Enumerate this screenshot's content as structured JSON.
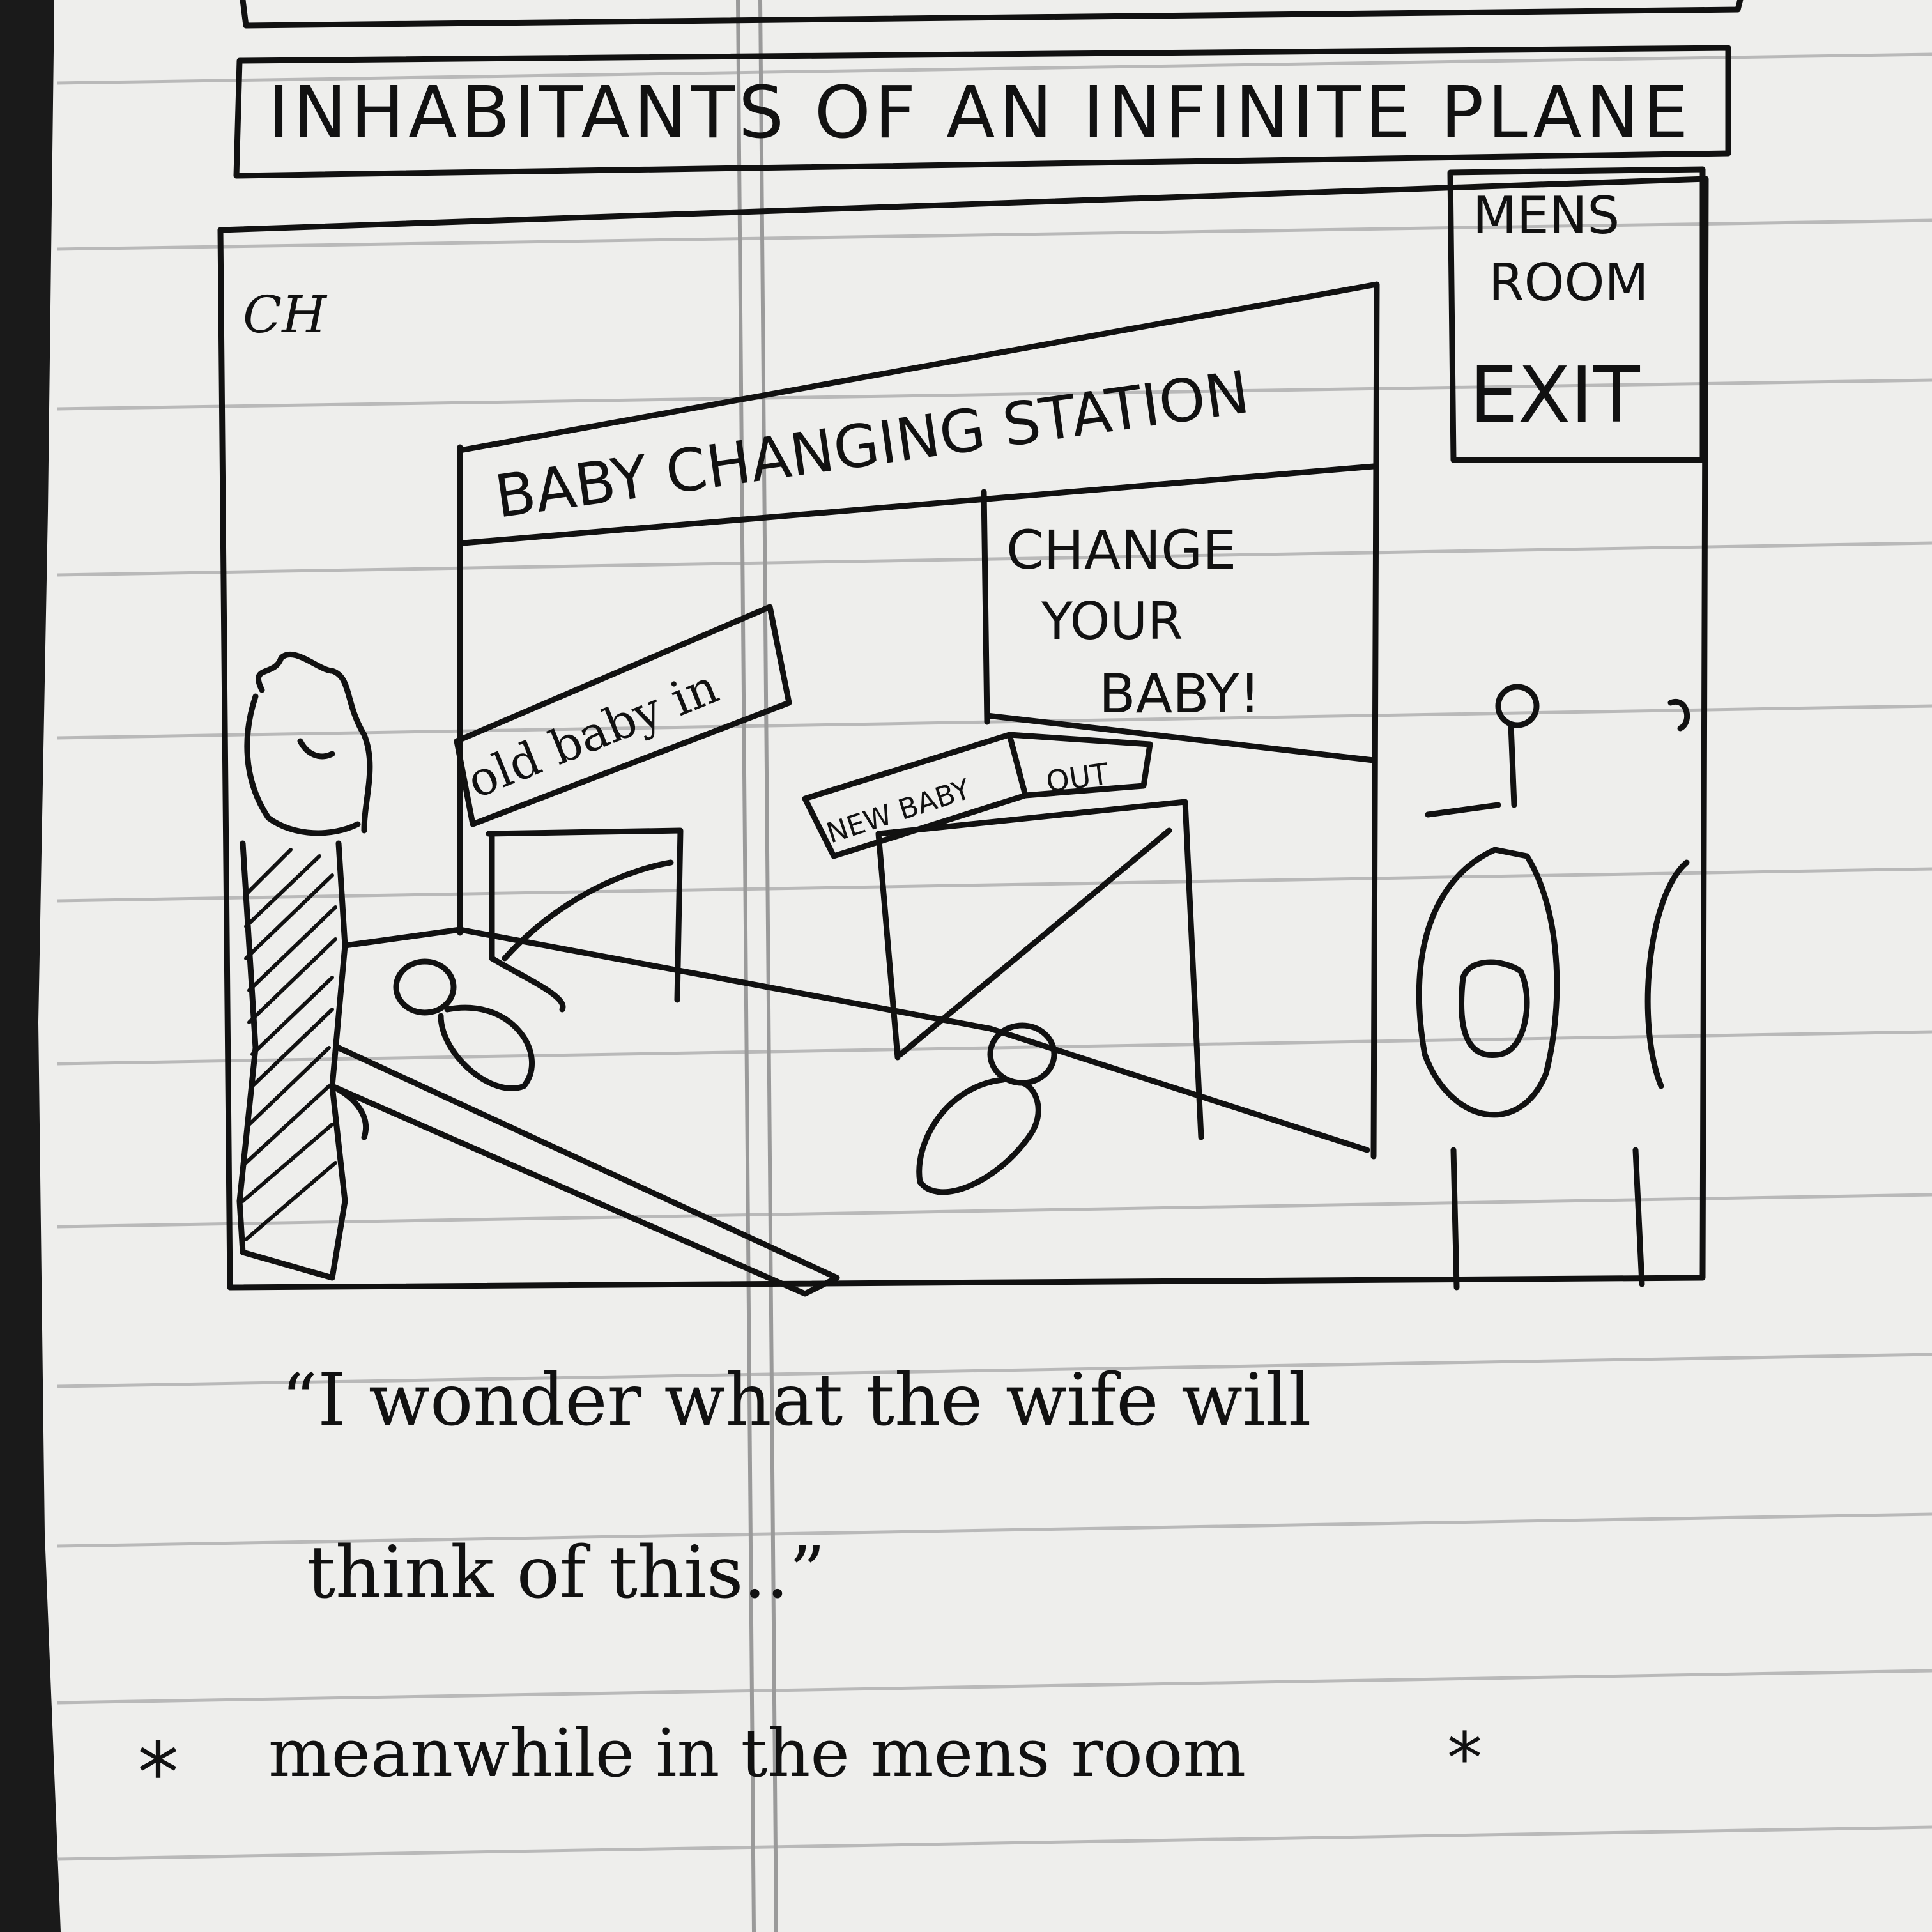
{
  "comic": {
    "title": "INHABITANTS OF AN INFINITE PLANE",
    "initials": "CH",
    "sign_mens_room": [
      "MENS",
      "ROOM",
      "EXIT"
    ],
    "sign_station": "BABY CHANGING STATION",
    "sign_change": [
      "CHANGE",
      "YOUR",
      "BABY!"
    ],
    "slot_old": "old baby in",
    "slot_new": "NEW BABY",
    "slot_out": "OUT",
    "caption_line1": "“I wonder what the wife will",
    "caption_line2": "think of this..”",
    "footer": "meanwhile in the mens room",
    "star_glyph": "*"
  },
  "colors": {
    "paper": "#eeeeec",
    "rule_line": "#b9b9b9",
    "margin_line": "#9a9a9a",
    "ink": "#111111"
  }
}
